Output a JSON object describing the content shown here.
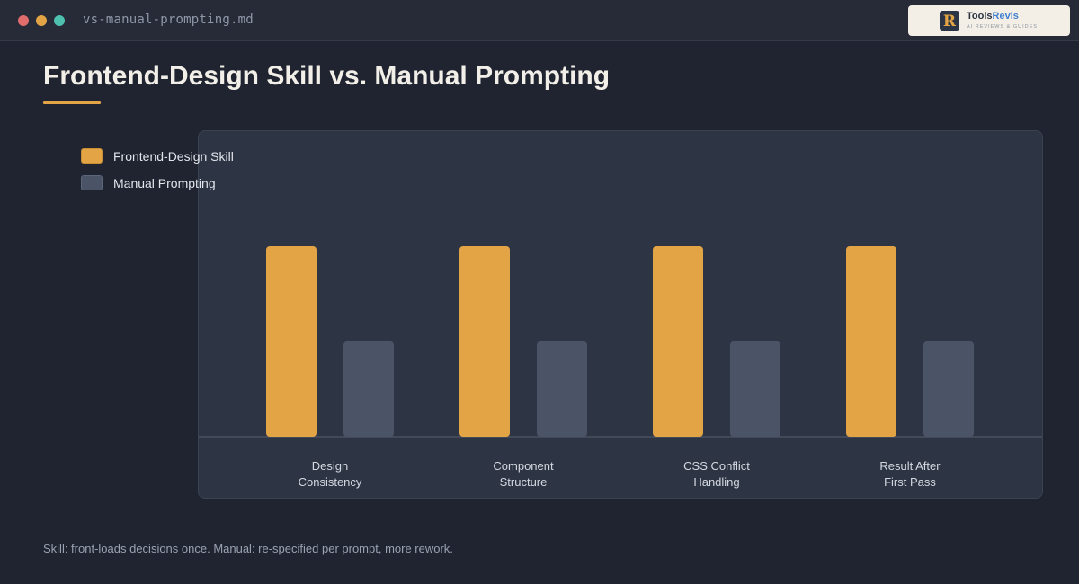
{
  "window": {
    "filename": "vs-manual-prompting.md",
    "traffic_lights": [
      "#e06c6c",
      "#e3a446",
      "#4fbfae"
    ]
  },
  "logo": {
    "name_part1": "Tools",
    "name_part2": "Revis",
    "tagline": "AI REVIEWS & GUIDES",
    "mark_letter": "R"
  },
  "page": {
    "title": "Frontend-Design Skill vs. Manual Prompting",
    "footnote": "Skill: front-loads decisions once. Manual: re-specified per prompt, more rework."
  },
  "colors": {
    "accent": "#e3a446",
    "muted": "#4b5466",
    "baseline": "#4a5263"
  },
  "chart_data": {
    "type": "bar",
    "title": "",
    "xlabel": "",
    "ylabel": "",
    "ylim": [
      0,
      100
    ],
    "grid": false,
    "legend_position": "top-left",
    "categories": [
      [
        "Design",
        "Consistency"
      ],
      [
        "Component",
        "Structure"
      ],
      [
        "CSS Conflict",
        "Handling"
      ],
      [
        "Result After",
        "First Pass"
      ]
    ],
    "series": [
      {
        "name": "Frontend-Design Skill",
        "color": "#e3a446",
        "values": [
          100,
          100,
          100,
          100
        ]
      },
      {
        "name": "Manual Prompting",
        "color": "#4b5466",
        "values": [
          50,
          50,
          50,
          50
        ]
      }
    ]
  }
}
